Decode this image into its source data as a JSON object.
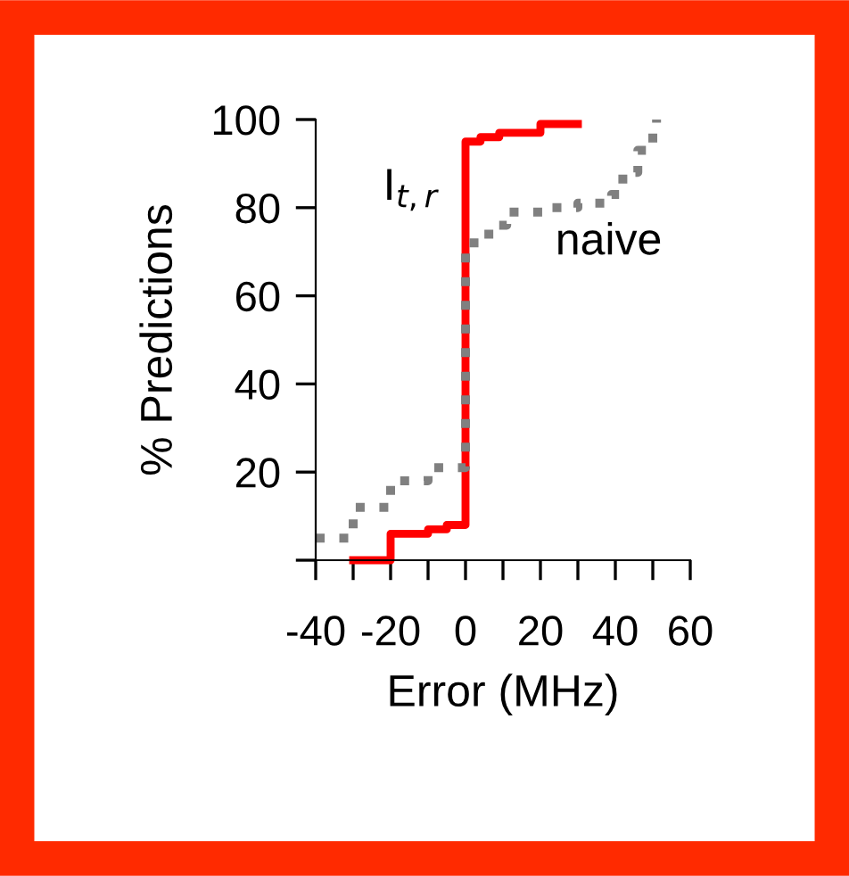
{
  "chart_data": {
    "type": "step",
    "xlabel": "Error (MHz)",
    "ylabel": "% Predictions",
    "xlim": [
      -40,
      60
    ],
    "ylim": [
      0,
      100
    ],
    "xticks": [
      -40,
      {
        "value": -30,
        "label": null
      },
      -20,
      {
        "value": -10,
        "label": null
      },
      0,
      {
        "value": 10,
        "label": null
      },
      20,
      {
        "value": 30,
        "label": null
      },
      40,
      {
        "value": 50,
        "label": null
      },
      60
    ],
    "yticks": [
      {
        "value": 0,
        "label": null
      },
      20,
      40,
      60,
      80,
      100
    ],
    "grid": false,
    "legend": false,
    "marker": "none",
    "series": [
      {
        "name": "I$_{t,r}$",
        "color": "#ff0000",
        "line_style": "solid",
        "x": [
          -30,
          -20,
          -10,
          -5,
          0,
          4,
          9,
          20,
          30
        ],
        "values": [
          0,
          6,
          7,
          8,
          95,
          96,
          97,
          99,
          99
        ]
      },
      {
        "name": "naive",
        "color": "#808080",
        "line_style": "dotted",
        "x": [
          -40,
          -30,
          -20,
          -10,
          0,
          4,
          8,
          11,
          22,
          30,
          39,
          42,
          46,
          50,
          51
        ],
        "values": [
          5,
          12,
          18,
          21,
          72,
          74,
          76,
          79,
          80,
          81,
          83,
          88,
          93,
          97,
          100
        ]
      }
    ]
  }
}
